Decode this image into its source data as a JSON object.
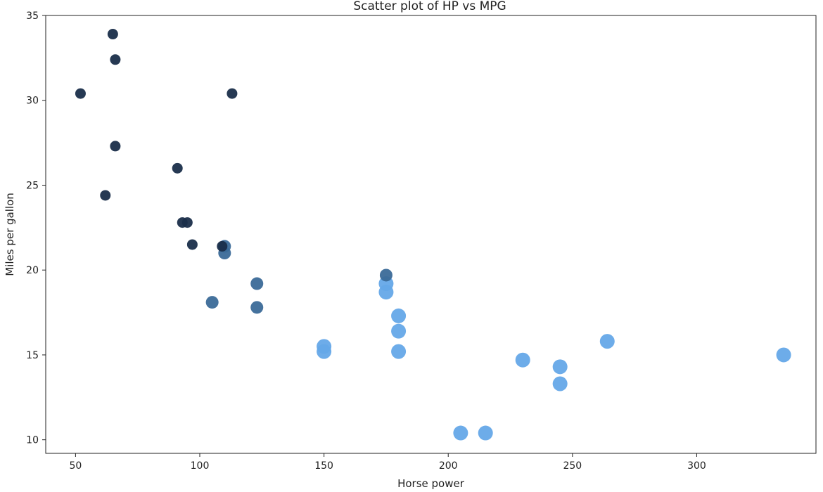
{
  "chart_data": {
    "type": "scatter",
    "title": "Scatter plot of HP vs MPG",
    "xlabel": "Horse power",
    "ylabel": "Miles per gallon",
    "xlim": [
      38,
      348
    ],
    "ylim": [
      9.2,
      35.0
    ],
    "xticks": [
      50,
      100,
      150,
      200,
      250,
      300
    ],
    "yticks": [
      10,
      15,
      20,
      25,
      30,
      35
    ],
    "grid": false,
    "color_scale": {
      "low": "#1a2e4a",
      "mid": "#3b6a98",
      "high": "#65a8e8"
    },
    "points": [
      {
        "x": 52,
        "y": 30.4,
        "color": "#1a2e4a"
      },
      {
        "x": 62,
        "y": 24.4,
        "color": "#1a2e4a"
      },
      {
        "x": 65,
        "y": 33.9,
        "color": "#1a2e4a"
      },
      {
        "x": 66,
        "y": 32.4,
        "color": "#1a2e4a"
      },
      {
        "x": 66,
        "y": 27.3,
        "color": "#1a2e4a"
      },
      {
        "x": 91,
        "y": 26.0,
        "color": "#1a2e4a"
      },
      {
        "x": 93,
        "y": 22.8,
        "color": "#1a2e4a"
      },
      {
        "x": 95,
        "y": 22.8,
        "color": "#1a2e4a"
      },
      {
        "x": 97,
        "y": 21.5,
        "color": "#1a2e4a"
      },
      {
        "x": 110,
        "y": 21.4,
        "color": "#3b6a98"
      },
      {
        "x": 110,
        "y": 21.0,
        "color": "#3b6a98"
      },
      {
        "x": 109,
        "y": 21.4,
        "color": "#1a2e4a"
      },
      {
        "x": 113,
        "y": 30.4,
        "color": "#1a2e4a"
      },
      {
        "x": 105,
        "y": 18.1,
        "color": "#3b6a98"
      },
      {
        "x": 123,
        "y": 19.2,
        "color": "#3b6a98"
      },
      {
        "x": 123,
        "y": 17.8,
        "color": "#3b6a98"
      },
      {
        "x": 150,
        "y": 15.5,
        "color": "#65a8e8"
      },
      {
        "x": 150,
        "y": 15.2,
        "color": "#65a8e8"
      },
      {
        "x": 175,
        "y": 19.2,
        "color": "#65a8e8"
      },
      {
        "x": 175,
        "y": 18.7,
        "color": "#65a8e8"
      },
      {
        "x": 175,
        "y": 19.7,
        "color": "#3b6a98"
      },
      {
        "x": 180,
        "y": 17.3,
        "color": "#65a8e8"
      },
      {
        "x": 180,
        "y": 16.4,
        "color": "#65a8e8"
      },
      {
        "x": 180,
        "y": 15.2,
        "color": "#65a8e8"
      },
      {
        "x": 205,
        "y": 10.4,
        "color": "#65a8e8"
      },
      {
        "x": 215,
        "y": 10.4,
        "color": "#65a8e8"
      },
      {
        "x": 230,
        "y": 14.7,
        "color": "#65a8e8"
      },
      {
        "x": 245,
        "y": 14.3,
        "color": "#65a8e8"
      },
      {
        "x": 245,
        "y": 13.3,
        "color": "#65a8e8"
      },
      {
        "x": 264,
        "y": 15.8,
        "color": "#65a8e8"
      },
      {
        "x": 335,
        "y": 15.0,
        "color": "#65a8e8"
      }
    ]
  }
}
